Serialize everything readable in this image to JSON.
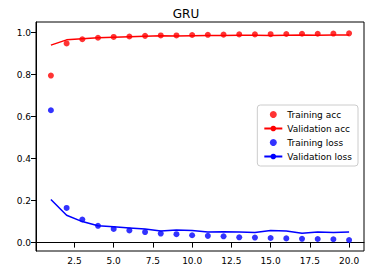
{
  "chart_data": {
    "type": "line",
    "title": "GRU",
    "x": [
      1,
      2,
      3,
      4,
      5,
      6,
      7,
      8,
      9,
      10,
      11,
      12,
      13,
      14,
      15,
      16,
      17,
      18,
      19,
      20
    ],
    "series": [
      {
        "name": "Training acc",
        "color": "#ff0000",
        "type": "scatter",
        "marker": "circle",
        "values": [
          0.795,
          0.948,
          0.968,
          0.975,
          0.979,
          0.981,
          0.984,
          0.986,
          0.986,
          0.988,
          0.989,
          0.99,
          0.991,
          0.991,
          0.992,
          0.993,
          0.994,
          0.994,
          0.995,
          0.996
        ]
      },
      {
        "name": "Validation acc",
        "color": "#ff0000",
        "type": "line",
        "line_style": "solid",
        "values": [
          0.94,
          0.965,
          0.97,
          0.975,
          0.978,
          0.98,
          0.982,
          0.984,
          0.983,
          0.985,
          0.986,
          0.986,
          0.987,
          0.987,
          0.986,
          0.987,
          0.988,
          0.987,
          0.988,
          0.988
        ]
      },
      {
        "name": "Training loss",
        "color": "#0000ff",
        "type": "scatter",
        "marker": "circle",
        "values": [
          0.63,
          0.165,
          0.11,
          0.08,
          0.065,
          0.058,
          0.05,
          0.043,
          0.04,
          0.035,
          0.032,
          0.03,
          0.025,
          0.024,
          0.022,
          0.02,
          0.018,
          0.017,
          0.016,
          0.012
        ]
      },
      {
        "name": "Validation loss",
        "color": "#0000ff",
        "type": "line",
        "line_style": "solid",
        "values": [
          0.205,
          0.13,
          0.1,
          0.08,
          0.075,
          0.07,
          0.065,
          0.055,
          0.06,
          0.058,
          0.05,
          0.052,
          0.05,
          0.048,
          0.058,
          0.055,
          0.045,
          0.05,
          0.048,
          0.05
        ]
      }
    ],
    "xlim": [
      0.05,
      20.95
    ],
    "xticks": [
      {
        "value": 2.5,
        "label": "2.5"
      },
      {
        "value": 5,
        "label": "5.0"
      },
      {
        "value": 7.5,
        "label": "7.5"
      },
      {
        "value": 10,
        "label": "10.0"
      },
      {
        "value": 12.5,
        "label": "12.5"
      },
      {
        "value": 15,
        "label": "15.0"
      },
      {
        "value": 17.5,
        "label": "17.5"
      },
      {
        "value": 20,
        "label": "20.0"
      }
    ],
    "ylim": [
      -0.04,
      1.05
    ],
    "yticks": [
      {
        "value": 0,
        "label": "0.0"
      },
      {
        "value": 0.2,
        "label": "0.2"
      },
      {
        "value": 0.4,
        "label": "0.4"
      },
      {
        "value": 0.6,
        "label": "0.6"
      },
      {
        "value": 0.8,
        "label": "0.8"
      },
      {
        "value": 1,
        "label": "1.0"
      }
    ],
    "grid": false,
    "legend": "right"
  }
}
